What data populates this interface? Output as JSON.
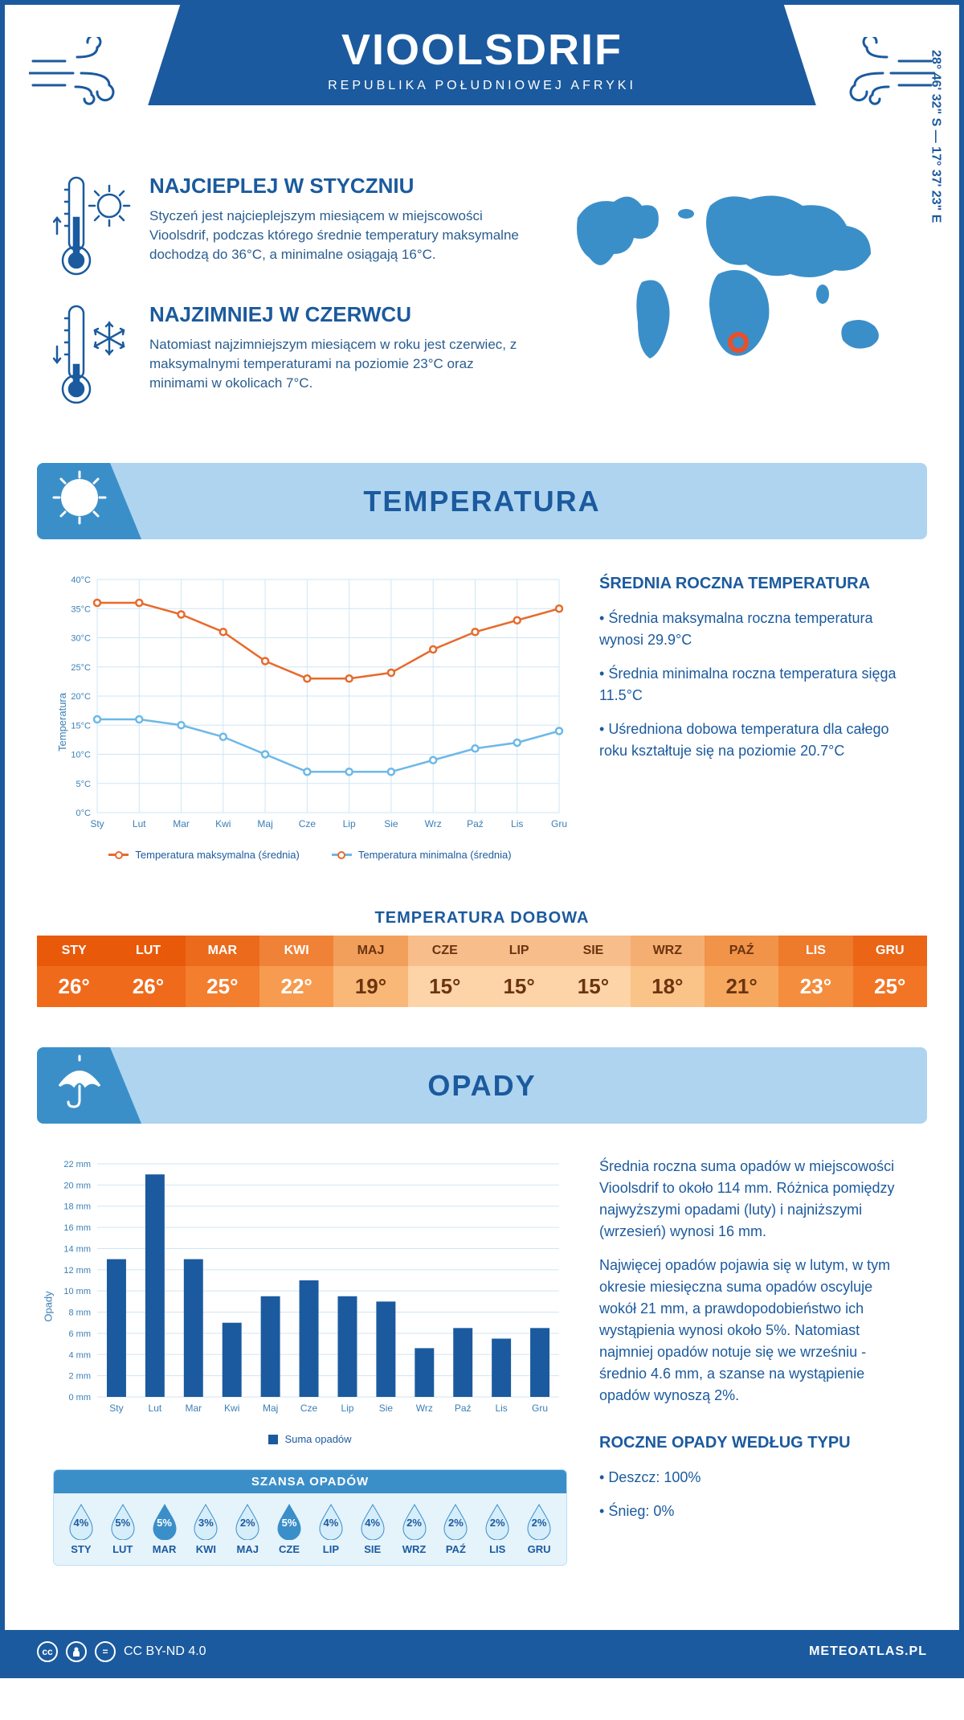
{
  "header": {
    "title": "VIOOLSDRIF",
    "subtitle": "REPUBLIKA POŁUDNIOWEJ AFRYKI"
  },
  "coords": "28° 46' 32\" S — 17° 37' 23\" E",
  "intro": {
    "hot": {
      "title": "NAJCIEPLEJ W STYCZNIU",
      "text": "Styczeń jest najcieplejszym miesiącem w miejscowości Vioolsdrif, podczas którego średnie temperatury maksymalne dochodzą do 36°C, a minimalne osiągają 16°C."
    },
    "cold": {
      "title": "NAJZIMNIEJ W CZERWCU",
      "text": "Natomiast najzimniejszym miesiącem w roku jest czerwiec, z maksymalnymi temperaturami na poziomie 23°C oraz minimami w okolicach 7°C."
    }
  },
  "temperature": {
    "banner": "TEMPERATURA",
    "chart": {
      "y_label": "Temperatura",
      "months": [
        "Sty",
        "Lut",
        "Mar",
        "Kwi",
        "Maj",
        "Cze",
        "Lip",
        "Sie",
        "Wrz",
        "Paź",
        "Lis",
        "Gru"
      ],
      "y_min": 0,
      "y_max": 40,
      "y_step": 5,
      "y_ticks": [
        "0°C",
        "5°C",
        "10°C",
        "15°C",
        "20°C",
        "25°C",
        "30°C",
        "35°C",
        "40°C"
      ],
      "max_series": [
        36,
        36,
        34,
        31,
        26,
        23,
        23,
        24,
        28,
        31,
        33,
        35
      ],
      "min_series": [
        16,
        16,
        15,
        13,
        10,
        7,
        7,
        7,
        9,
        11,
        12,
        14
      ],
      "max_color": "#e86a2b",
      "min_color": "#6db8e8",
      "grid_color": "#cfe6f5",
      "legend_max": "Temperatura maksymalna (średnia)",
      "legend_min": "Temperatura minimalna (średnia)"
    },
    "stats": {
      "heading": "ŚREDNIA ROCZNA TEMPERATURA",
      "items": [
        "Średnia maksymalna roczna temperatura wynosi 29.9°C",
        "Średnia minimalna roczna temperatura sięga 11.5°C",
        "Uśredniona dobowa temperatura dla całego roku kształtuje się na poziomie 20.7°C"
      ]
    },
    "daily": {
      "heading": "TEMPERATURA DOBOWA",
      "months": [
        "STY",
        "LUT",
        "MAR",
        "KWI",
        "MAJ",
        "CZE",
        "LIP",
        "SIE",
        "WRZ",
        "PAŹ",
        "LIS",
        "GRU"
      ],
      "values": [
        "26°",
        "26°",
        "25°",
        "22°",
        "19°",
        "15°",
        "15°",
        "15°",
        "18°",
        "21°",
        "23°",
        "25°"
      ],
      "colors": [
        "#f06a1b",
        "#f06a1b",
        "#f37e2e",
        "#f69b4f",
        "#f9b877",
        "#fcd4a7",
        "#fcd4a7",
        "#fcd4a7",
        "#fac388",
        "#f7a85f",
        "#f48d3d",
        "#f27525"
      ],
      "header_color_scale": [
        "#e85a0a",
        "#e85a0a",
        "#eb6a1c",
        "#ef8237",
        "#f39f5c",
        "#f7bd8a",
        "#f7bd8a",
        "#f7bd8a",
        "#f5ae71",
        "#f19349",
        "#ee7a2b",
        "#ea6516"
      ],
      "text_light": "#ffffff",
      "text_dark": "#6b3410"
    }
  },
  "precipitation": {
    "banner": "OPADY",
    "chart": {
      "y_label": "Opady",
      "months": [
        "Sty",
        "Lut",
        "Mar",
        "Kwi",
        "Maj",
        "Cze",
        "Lip",
        "Sie",
        "Wrz",
        "Paź",
        "Lis",
        "Gru"
      ],
      "y_min": 0,
      "y_max": 22,
      "y_step": 2,
      "values": [
        13,
        21,
        13,
        7,
        9.5,
        11,
        9.5,
        9,
        4.6,
        6.5,
        5.5,
        6.5
      ],
      "bar_color": "#1b5a9e",
      "grid_color": "#cfe6f5",
      "legend": "Suma opadów"
    },
    "text": {
      "p1": "Średnia roczna suma opadów w miejscowości Vioolsdrif to około 114 mm. Różnica pomiędzy najwyższymi opadami (luty) i najniższymi (wrzesień) wynosi 16 mm.",
      "p2": "Najwięcej opadów pojawia się w lutym, w tym okresie miesięczna suma opadów oscyluje wokół 21 mm, a prawdopodobieństwo ich wystąpienia wynosi około 5%. Natomiast najmniej opadów notuje się we wrześniu - średnio 4.6 mm, a szanse na wystąpienie opadów wynoszą 2%.",
      "type_heading": "ROCZNE OPADY WEDŁUG TYPU",
      "type_items": [
        "Deszcz: 100%",
        "Śnieg: 0%"
      ]
    },
    "chance": {
      "heading": "SZANSA OPADÓW",
      "months": [
        "STY",
        "LUT",
        "MAR",
        "KWI",
        "MAJ",
        "CZE",
        "LIP",
        "SIE",
        "WRZ",
        "PAŹ",
        "LIS",
        "GRU"
      ],
      "values": [
        "4%",
        "5%",
        "5%",
        "3%",
        "2%",
        "5%",
        "4%",
        "4%",
        "2%",
        "2%",
        "2%",
        "2%"
      ],
      "filled": [
        false,
        false,
        true,
        false,
        false,
        true,
        false,
        false,
        false,
        false,
        false,
        false
      ],
      "fill_color": "#3b8fc9",
      "outline_color": "#3b8fc9",
      "light_fill": "#d6edfa"
    }
  },
  "footer": {
    "license": "CC BY-ND 4.0",
    "site": "METEOATLAS.PL"
  }
}
